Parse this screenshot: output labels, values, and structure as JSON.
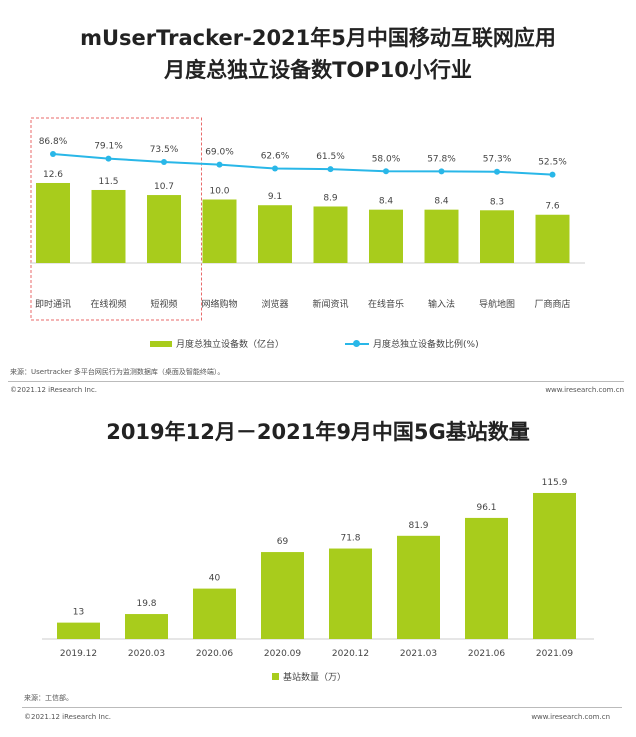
{
  "chart1": {
    "title_line1": "mUserTracker-2021年5月中国移动互联网应用",
    "title_line2": "月度总独立设备数TOP10小行业",
    "legend_bar": "月度总独立设备数（亿台）",
    "legend_line": "月度总独立设备数比例(%)",
    "source": "来源：Usertracker 多平台网民行为监测数据库（桌面及智能终端）。",
    "copyright": "©2021.12 iResearch Inc.",
    "website": "www.iresearch.com.cn"
  },
  "chart2": {
    "title": "2019年12月－2021年9月中国5G基站数量",
    "legend_bar": "基站数量（万）",
    "source": "来源：工信部。",
    "copyright": "©2021.12 iResearch Inc.",
    "website": "www.iresearch.com.cn"
  },
  "colors": {
    "bar": "#a8cc1c",
    "line": "#29b7e8",
    "highlight": "#e86a6a"
  },
  "chart_data": [
    {
      "type": "bar",
      "title": "mUserTracker-2021年5月中国移动互联网应用 月度总独立设备数TOP10小行业",
      "categories": [
        "即时通讯",
        "在线视频",
        "短视频",
        "网络购物",
        "浏览器",
        "新闻资讯",
        "在线音乐",
        "输入法",
        "导航地图",
        "厂商商店"
      ],
      "series": [
        {
          "name": "月度总独立设备数（亿台）",
          "type": "bar",
          "values": [
            12.6,
            11.5,
            10.7,
            10.0,
            9.1,
            8.9,
            8.4,
            8.4,
            8.3,
            7.6
          ],
          "labels": [
            "12.6",
            "11.5",
            "10.7",
            "10.0",
            "9.1",
            "8.9",
            "8.4",
            "8.4",
            "8.3",
            "7.6"
          ]
        },
        {
          "name": "月度总独立设备数比例(%)",
          "type": "line",
          "values": [
            86.8,
            79.1,
            73.5,
            69.0,
            62.6,
            61.5,
            58.0,
            57.8,
            57.3,
            52.5
          ],
          "labels": [
            "86.8%",
            "79.1%",
            "73.5%",
            "69.0%",
            "62.6%",
            "61.5%",
            "58.0%",
            "57.8%",
            "57.3%",
            "52.5%"
          ]
        }
      ],
      "highlighted_categories": [
        "即时通讯",
        "在线视频",
        "短视频"
      ],
      "legend": "bottom"
    },
    {
      "type": "bar",
      "title": "2019年12月－2021年9月中国5G基站数量",
      "categories": [
        "2019.12",
        "2020.03",
        "2020.06",
        "2020.09",
        "2020.12",
        "2021.03",
        "2021.06",
        "2021.09"
      ],
      "series": [
        {
          "name": "基站数量（万）",
          "values": [
            13,
            19.8,
            40,
            69,
            71.8,
            81.9,
            96.1,
            115.9
          ],
          "labels": [
            "13",
            "19.8",
            "40",
            "69",
            "71.8",
            "81.9",
            "96.1",
            "115.9"
          ]
        }
      ],
      "legend": "bottom"
    }
  ]
}
